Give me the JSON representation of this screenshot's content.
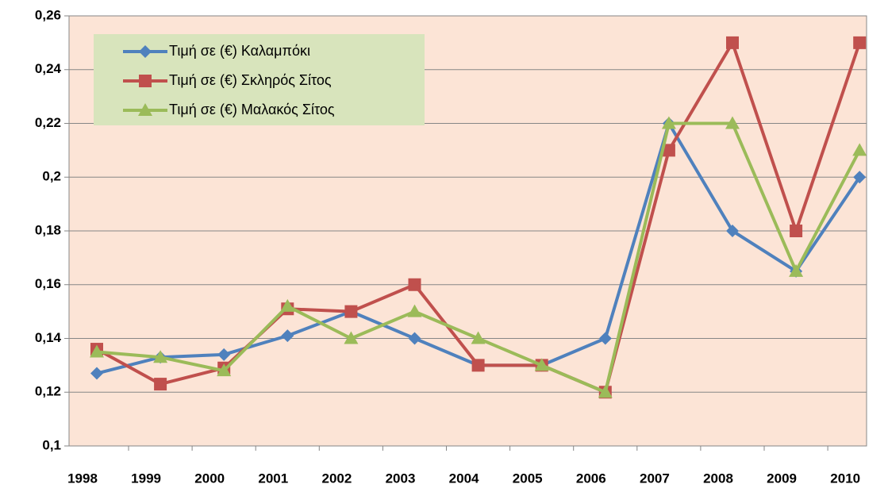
{
  "chart_data": {
    "type": "line",
    "categories": [
      "1998",
      "1999",
      "2000",
      "2001",
      "2002",
      "2003",
      "2004",
      "2005",
      "2006",
      "2007",
      "2008",
      "2009",
      "2010"
    ],
    "series": [
      {
        "name": "Τιμή σε (€) Καλαμπόκι",
        "color": "#4f81bd",
        "marker": "diamond",
        "values": [
          0.127,
          0.133,
          0.134,
          0.141,
          0.15,
          0.14,
          0.13,
          0.13,
          0.14,
          0.22,
          0.18,
          0.165,
          0.2
        ]
      },
      {
        "name": "Τιμή σε (€) Σκληρός Σίτος",
        "color": "#c0504d",
        "marker": "square",
        "values": [
          0.136,
          0.123,
          0.129,
          0.151,
          0.15,
          0.16,
          0.13,
          0.13,
          0.12,
          0.21,
          0.25,
          0.18,
          0.25
        ]
      },
      {
        "name": "Τιμή σε (€) Μαλακός Σίτος",
        "color": "#9bbb59",
        "marker": "triangle",
        "values": [
          0.135,
          0.133,
          0.128,
          0.152,
          0.14,
          0.15,
          0.14,
          0.13,
          0.12,
          0.22,
          0.22,
          0.165,
          0.21
        ]
      }
    ],
    "ylim": [
      0.1,
      0.26
    ],
    "yticks": [
      {
        "value": 0.1,
        "label": "0,1"
      },
      {
        "value": 0.12,
        "label": "0,12"
      },
      {
        "value": 0.14,
        "label": "0,14"
      },
      {
        "value": 0.16,
        "label": "0,16"
      },
      {
        "value": 0.18,
        "label": "0,18"
      },
      {
        "value": 0.2,
        "label": "0,2"
      },
      {
        "value": 0.22,
        "label": "0,22"
      },
      {
        "value": 0.24,
        "label": "0,24"
      },
      {
        "value": 0.26,
        "label": "0,26"
      }
    ],
    "grid": true,
    "legend": "upper-left"
  }
}
